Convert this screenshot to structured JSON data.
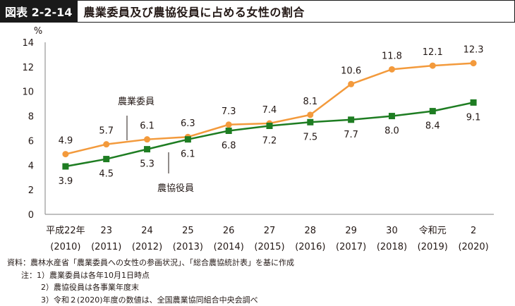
{
  "header": {
    "label": "図表 2-2-14",
    "title": "農業委員及び農協役員に占める女性の割合"
  },
  "chart_data": {
    "type": "line",
    "ylabel": "%",
    "ylim": [
      0,
      14
    ],
    "yticks": [
      0,
      2,
      4,
      6,
      8,
      10,
      12,
      14
    ],
    "grid": false,
    "categories_top": [
      "平成22年",
      "23",
      "24",
      "25",
      "26",
      "27",
      "28",
      "29",
      "30",
      "令和元",
      "2"
    ],
    "categories_bottom": [
      "(2010)",
      "(2011)",
      "(2012)",
      "(2013)",
      "(2014)",
      "(2015)",
      "(2016)",
      "(2017)",
      "(2018)",
      "(2019)",
      "(2020)"
    ],
    "series": [
      {
        "name": "農業委員",
        "color": "#f39a3c",
        "marker": "circle",
        "values": [
          4.9,
          5.7,
          6.1,
          6.3,
          7.3,
          7.4,
          8.1,
          10.6,
          11.8,
          12.1,
          12.3
        ]
      },
      {
        "name": "農協役員",
        "color": "#1e7d22",
        "marker": "square",
        "values": [
          3.9,
          4.5,
          5.3,
          6.1,
          6.8,
          7.2,
          7.5,
          7.7,
          8.0,
          8.4,
          9.1
        ]
      }
    ]
  },
  "notes": [
    "資料：農林水産省「農業委員への女性の参画状況」、「総合農協統計表」を基に作成",
    "注：1）農業委員は各年10月1日時点",
    "2）農協役員は各事業年度末",
    "3）令和２(2020)年度の数値は、全国農業協同組合中央会調べ"
  ]
}
